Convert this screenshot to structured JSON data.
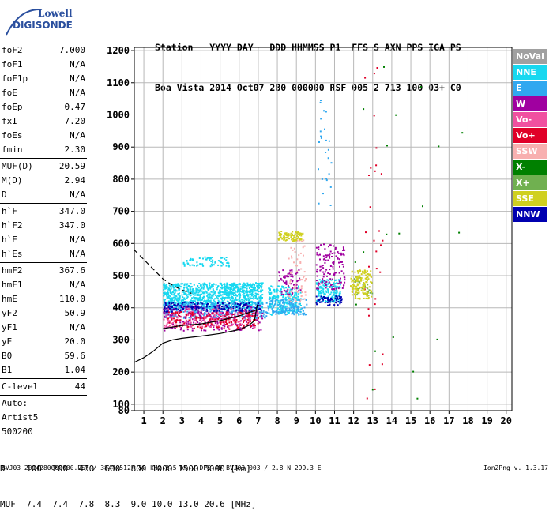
{
  "logo": {
    "line1": "Lowell",
    "line2": "DIGISONDE"
  },
  "header": {
    "line1": "Station   YYYY DAY   DDD HHMMSS P1  FFS S AXN PPS IGA PS",
    "line2": "Boa Vista 2014 Oct07 280 000000 RSF 005 2 713 100 03+ C0"
  },
  "params": {
    "group1": [
      {
        "label": "foF2",
        "value": "7.000"
      },
      {
        "label": "foF1",
        "value": "N/A"
      },
      {
        "label": "foF1p",
        "value": "N/A"
      },
      {
        "label": "foE",
        "value": "N/A"
      },
      {
        "label": "foEp",
        "value": "0.47"
      },
      {
        "label": "fxI",
        "value": "7.20"
      },
      {
        "label": "foEs",
        "value": "N/A"
      },
      {
        "label": "fmin",
        "value": "2.30"
      }
    ],
    "group2": [
      {
        "label": "MUF(D)",
        "value": "20.59"
      },
      {
        "label": "M(D)",
        "value": "2.94"
      },
      {
        "label": "D",
        "value": "N/A"
      }
    ],
    "group3": [
      {
        "label": "h`F",
        "value": "347.0"
      },
      {
        "label": "h`F2",
        "value": "347.0"
      },
      {
        "label": "h`E",
        "value": "N/A"
      },
      {
        "label": "h`Es",
        "value": "N/A"
      }
    ],
    "group4": [
      {
        "label": "hmF2",
        "value": "367.6"
      },
      {
        "label": "hmF1",
        "value": "N/A"
      },
      {
        "label": "hmE",
        "value": "110.0"
      },
      {
        "label": "yF2",
        "value": "50.9"
      },
      {
        "label": "yF1",
        "value": "N/A"
      },
      {
        "label": "yE",
        "value": "20.0"
      },
      {
        "label": "B0",
        "value": "59.6"
      },
      {
        "label": "B1",
        "value": "1.04"
      }
    ],
    "group5": [
      {
        "label": "C-level",
        "value": "44"
      }
    ],
    "auto_lines": [
      "Auto:",
      "Artist5",
      "500200"
    ]
  },
  "legend": [
    {
      "label": "NoVal",
      "color": "#a0a0a0"
    },
    {
      "label": "NNE",
      "color": "#18d8f0"
    },
    {
      "label": "E",
      "color": "#30a8f0"
    },
    {
      "label": "W",
      "color": "#a000a0"
    },
    {
      "label": "Vo-",
      "color": "#f050a0"
    },
    {
      "label": "Vo+",
      "color": "#e00028"
    },
    {
      "label": "SSW",
      "color": "#f8b0b0"
    },
    {
      "label": "X-",
      "color": "#008000"
    },
    {
      "label": "X+",
      "color": "#70b050"
    },
    {
      "label": "SSE",
      "color": "#d0d020"
    },
    {
      "label": "NNW",
      "color": "#0000b0"
    }
  ],
  "chart_data": {
    "type": "scatter",
    "xlim": [
      0.5,
      20.3
    ],
    "ylim": [
      80,
      1210
    ],
    "x_ticks": [
      1,
      2,
      3,
      4,
      5,
      6,
      7,
      8,
      9,
      10,
      11,
      12,
      13,
      14,
      15,
      16,
      17,
      18,
      19,
      20
    ],
    "y_ticks": [
      80,
      100,
      200,
      300,
      400,
      500,
      600,
      700,
      800,
      900,
      1000,
      1100,
      1200
    ],
    "grid": true,
    "series": [
      {
        "name": "NNE",
        "color": "#18d8f0",
        "clusters": [
          {
            "x": [
              2.0,
              7.2
            ],
            "y": [
              400,
              480
            ],
            "n": 1000
          },
          {
            "x": [
              3.0,
              5.5
            ],
            "y": [
              530,
              560
            ],
            "n": 70
          },
          {
            "x": [
              7.5,
              9.2
            ],
            "y": [
              380,
              470
            ],
            "n": 220
          },
          {
            "x": [
              10.0,
              11.3
            ],
            "y": [
              420,
              490
            ],
            "n": 180
          }
        ]
      },
      {
        "name": "E",
        "color": "#30a8f0",
        "clusters": [
          {
            "x": [
              2.0,
              7.5
            ],
            "y": [
              370,
              420
            ],
            "n": 300
          },
          {
            "x": [
              7.5,
              9.5
            ],
            "y": [
              380,
              430
            ],
            "n": 120
          },
          {
            "x": [
              10.1,
              10.8
            ],
            "y": [
              720,
              1060
            ],
            "n": 25
          }
        ]
      },
      {
        "name": "W",
        "color": "#a000a0",
        "clusters": [
          {
            "x": [
              2.0,
              7.2
            ],
            "y": [
              330,
              410
            ],
            "n": 250
          },
          {
            "x": [
              8.0,
              9.2
            ],
            "y": [
              440,
              520
            ],
            "n": 60
          },
          {
            "x": [
              10.0,
              11.5
            ],
            "y": [
              460,
              600
            ],
            "n": 130
          }
        ]
      },
      {
        "name": "Vo-",
        "color": "#f050a0",
        "clusters": [
          {
            "x": [
              2.0,
              7.0
            ],
            "y": [
              340,
              400
            ],
            "n": 200
          }
        ]
      },
      {
        "name": "Vo+",
        "color": "#e00028",
        "clusters": [
          {
            "x": [
              2.0,
              7.0
            ],
            "y": [
              335,
              390
            ],
            "n": 150
          },
          {
            "x": [
              12.5,
              13.5
            ],
            "y": [
              100,
              1200
            ],
            "n": 30
          }
        ]
      },
      {
        "name": "SSW",
        "color": "#f8b0b0",
        "clusters": [
          {
            "x": [
              8.5,
              9.5
            ],
            "y": [
              420,
              620
            ],
            "n": 60
          }
        ]
      },
      {
        "name": "X-",
        "color": "#008000",
        "clusters": [
          {
            "x": [
              12.0,
              18.0
            ],
            "y": [
              100,
              1200
            ],
            "n": 20
          }
        ]
      },
      {
        "name": "X+",
        "color": "#70b050",
        "clusters": [
          {
            "x": [
              12.0,
              13.0
            ],
            "y": [
              440,
              500
            ],
            "n": 30
          }
        ]
      },
      {
        "name": "SSE",
        "color": "#d0d020",
        "clusters": [
          {
            "x": [
              8.0,
              9.3
            ],
            "y": [
              610,
              640
            ],
            "n": 90
          },
          {
            "x": [
              11.8,
              12.9
            ],
            "y": [
              430,
              520
            ],
            "n": 140
          }
        ]
      },
      {
        "name": "NNW",
        "color": "#0000b0",
        "clusters": [
          {
            "x": [
              2.0,
              7.2
            ],
            "y": [
              390,
              420
            ],
            "n": 150
          },
          {
            "x": [
              10.0,
              11.4
            ],
            "y": [
              410,
              440
            ],
            "n": 60
          }
        ]
      }
    ],
    "profile_solid": {
      "x": [
        0.5,
        1.0,
        1.5,
        2.0,
        2.5,
        3.0,
        4.0,
        5.0,
        6.0,
        6.5,
        6.8,
        6.95
      ],
      "y": [
        230,
        245,
        265,
        290,
        300,
        305,
        312,
        320,
        332,
        345,
        360,
        410
      ]
    },
    "profile_dashed": {
      "x": [
        0.5,
        1.0,
        1.5,
        2.0,
        2.5,
        3.0,
        3.5
      ],
      "y": [
        580,
        550,
        520,
        490,
        470,
        455,
        445
      ]
    },
    "trace_line": {
      "x": [
        2.0,
        3.0,
        4.0,
        5.0,
        6.0,
        6.5,
        7.0
      ],
      "y": [
        335,
        345,
        350,
        360,
        375,
        385,
        395
      ]
    }
  },
  "footer": {
    "d_row": "D    100  200  400  600  800 1000 1500 3000 [km]",
    "muf_row": "MUF  7.4  7.4  7.8  8.3  9.0 10.0 13.0 20.6 [MHz]",
    "file": "BVJ03_2014280000000.RSF / 384fx512h 50 kHz 2.5 km / DPS-4D BVJ03 003 / 2.8 N 299.3 E",
    "version": "Ion2Png v. 1.3.17"
  }
}
